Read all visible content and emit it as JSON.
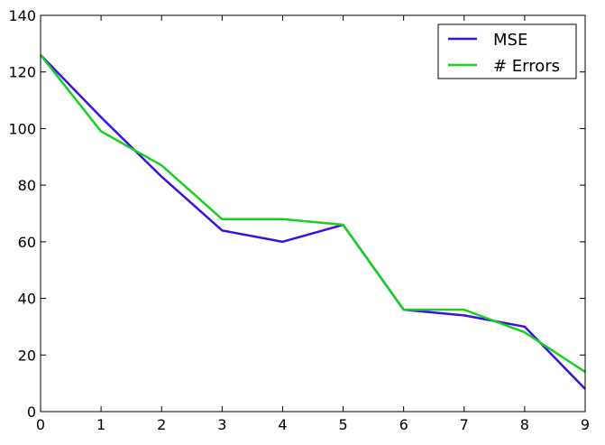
{
  "chart_data": {
    "type": "line",
    "x": [
      0,
      1,
      2,
      3,
      4,
      5,
      6,
      7,
      8,
      9
    ],
    "series": [
      {
        "name": "MSE",
        "color": "#3a10e6",
        "values": [
          126,
          104,
          83,
          64,
          60,
          66,
          36,
          34,
          30,
          8
        ]
      },
      {
        "name": "# Errors",
        "color": "#14d21e",
        "values": [
          126,
          99,
          87,
          68,
          68,
          66,
          36,
          36,
          28,
          14
        ]
      }
    ],
    "xlim": [
      0,
      9
    ],
    "ylim": [
      0,
      140
    ],
    "xticks": [
      0,
      1,
      2,
      3,
      4,
      5,
      6,
      7,
      8,
      9
    ],
    "yticks": [
      0,
      20,
      40,
      60,
      80,
      100,
      120,
      140
    ],
    "title": "",
    "xlabel": "",
    "ylabel": "",
    "grid": false,
    "legend_position": "top-right"
  }
}
